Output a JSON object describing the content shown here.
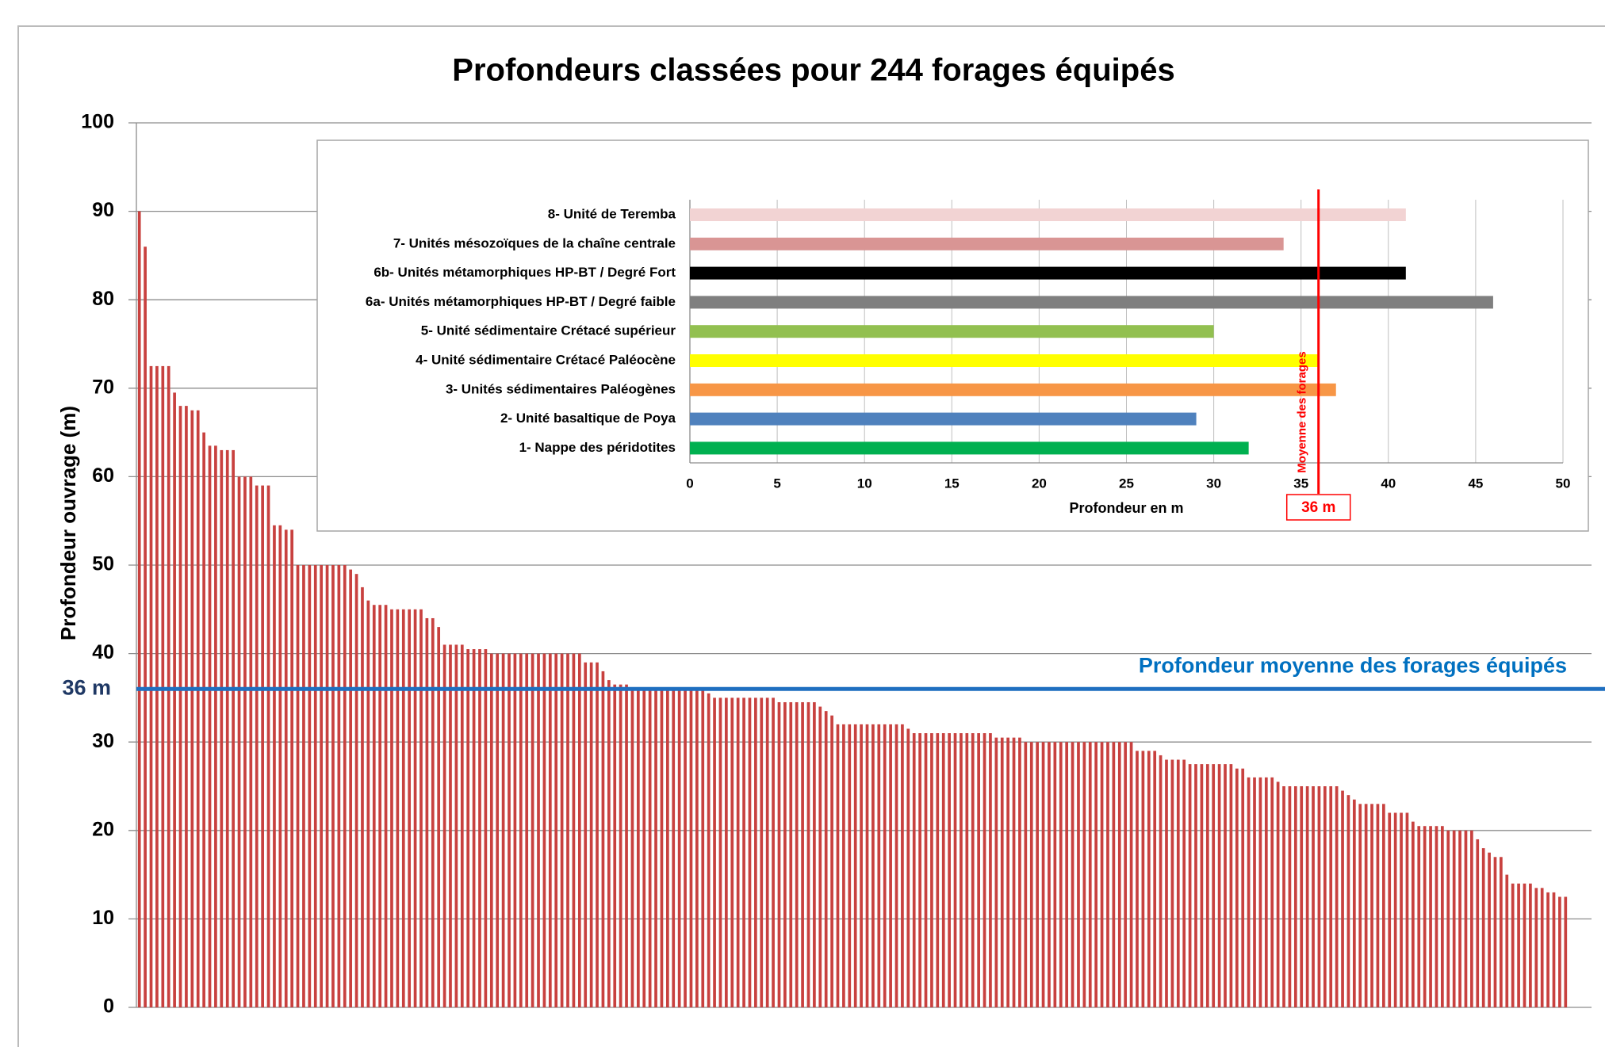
{
  "chart_data": [
    {
      "type": "bar",
      "title": "Profondeurs classées pour 244 forages équipés",
      "y_label": "Profondeur ouvrage (m)",
      "color": "#c8413f",
      "ylim": [
        0,
        100
      ],
      "yticks": [
        0,
        10,
        20,
        30,
        40,
        50,
        60,
        70,
        80,
        90,
        100
      ],
      "grid": true,
      "mean_line": {
        "value": 36,
        "label": "36 m",
        "annotation": "Profondeur moyenne des forages équipés",
        "color": "#1f6fc0"
      },
      "values": [
        90,
        86,
        72.5,
        72.5,
        72.5,
        72.5,
        69.5,
        68,
        68,
        67.5,
        67.5,
        65,
        63.5,
        63.5,
        63,
        63,
        63,
        60,
        60,
        60,
        59,
        59,
        59,
        54.5,
        54.5,
        54,
        54,
        50,
        50,
        50,
        50,
        50,
        50,
        50,
        50,
        50,
        49.5,
        49,
        47.5,
        46,
        45.5,
        45.5,
        45.5,
        45,
        45,
        45,
        45,
        45,
        45,
        44,
        44,
        43,
        41,
        41,
        41,
        41,
        40.5,
        40.5,
        40.5,
        40.5,
        40,
        40,
        40,
        40,
        40,
        40,
        40,
        40,
        40,
        40,
        40,
        40,
        40,
        40,
        40,
        40,
        39,
        39,
        39,
        38,
        37,
        36.5,
        36.5,
        36.5,
        36,
        36,
        36,
        36,
        36,
        36,
        36,
        36,
        36,
        36,
        36,
        36,
        36,
        35.5,
        35,
        35,
        35,
        35,
        35,
        35,
        35,
        35,
        35,
        35,
        35,
        34.5,
        34.5,
        34.5,
        34.5,
        34.5,
        34.5,
        34.5,
        34,
        33.5,
        33,
        32,
        32,
        32,
        32,
        32,
        32,
        32,
        32,
        32,
        32,
        32,
        32,
        31.5,
        31,
        31,
        31,
        31,
        31,
        31,
        31,
        31,
        31,
        31,
        31,
        31,
        31,
        31,
        30.5,
        30.5,
        30.5,
        30.5,
        30.5,
        30,
        30,
        30,
        30,
        30,
        30,
        30,
        30,
        30,
        30,
        30,
        30,
        30,
        30,
        30,
        30,
        30,
        30,
        30,
        29,
        29,
        29,
        29,
        28.5,
        28,
        28,
        28,
        28,
        27.5,
        27.5,
        27.5,
        27.5,
        27.5,
        27.5,
        27.5,
        27.5,
        27,
        27,
        26,
        26,
        26,
        26,
        26,
        25.5,
        25,
        25,
        25,
        25,
        25,
        25,
        25,
        25,
        25,
        25,
        24.5,
        24,
        23.5,
        23,
        23,
        23,
        23,
        23,
        22,
        22,
        22,
        22,
        21,
        20.5,
        20.5,
        20.5,
        20.5,
        20.5,
        20,
        20,
        20,
        20,
        20,
        19,
        18,
        17.5,
        17,
        17,
        15,
        14,
        14,
        14,
        14,
        13.5,
        13.5,
        13,
        13,
        12.5,
        12.5
      ]
    },
    {
      "type": "hbar",
      "x_label": "Profondeur en m",
      "categories": [
        "8- Unité de Teremba",
        "7- Unités mésozoïques de la chaîne centrale",
        "6b- Unités métamorphiques HP-BT / Degré Fort",
        "6a- Unités métamorphiques HP-BT / Degré faible",
        "5- Unité sédimentaire Crétacé supérieur",
        "4- Unité sédimentaire Crétacé Paléocène",
        "3- Unités sédimentaires Paléogènes",
        "2- Unité basaltique de Poya",
        "1- Nappe des péridotites"
      ],
      "values": [
        41,
        34,
        41,
        46,
        30,
        36,
        37,
        29,
        32
      ],
      "colors": [
        "#f2d3d3",
        "#d99594",
        "#000000",
        "#7f7f7f",
        "#92c050",
        "#ffff00",
        "#f79646",
        "#4f81bd",
        "#00b050"
      ],
      "xlim": [
        0,
        50
      ],
      "xticks": [
        0,
        5,
        10,
        15,
        20,
        25,
        30,
        35,
        40,
        45,
        50
      ],
      "grid": true,
      "mean_line": {
        "value": 36,
        "label": "36 m",
        "annotation": "Moyenne des forages",
        "color": "#ff0000"
      }
    }
  ]
}
